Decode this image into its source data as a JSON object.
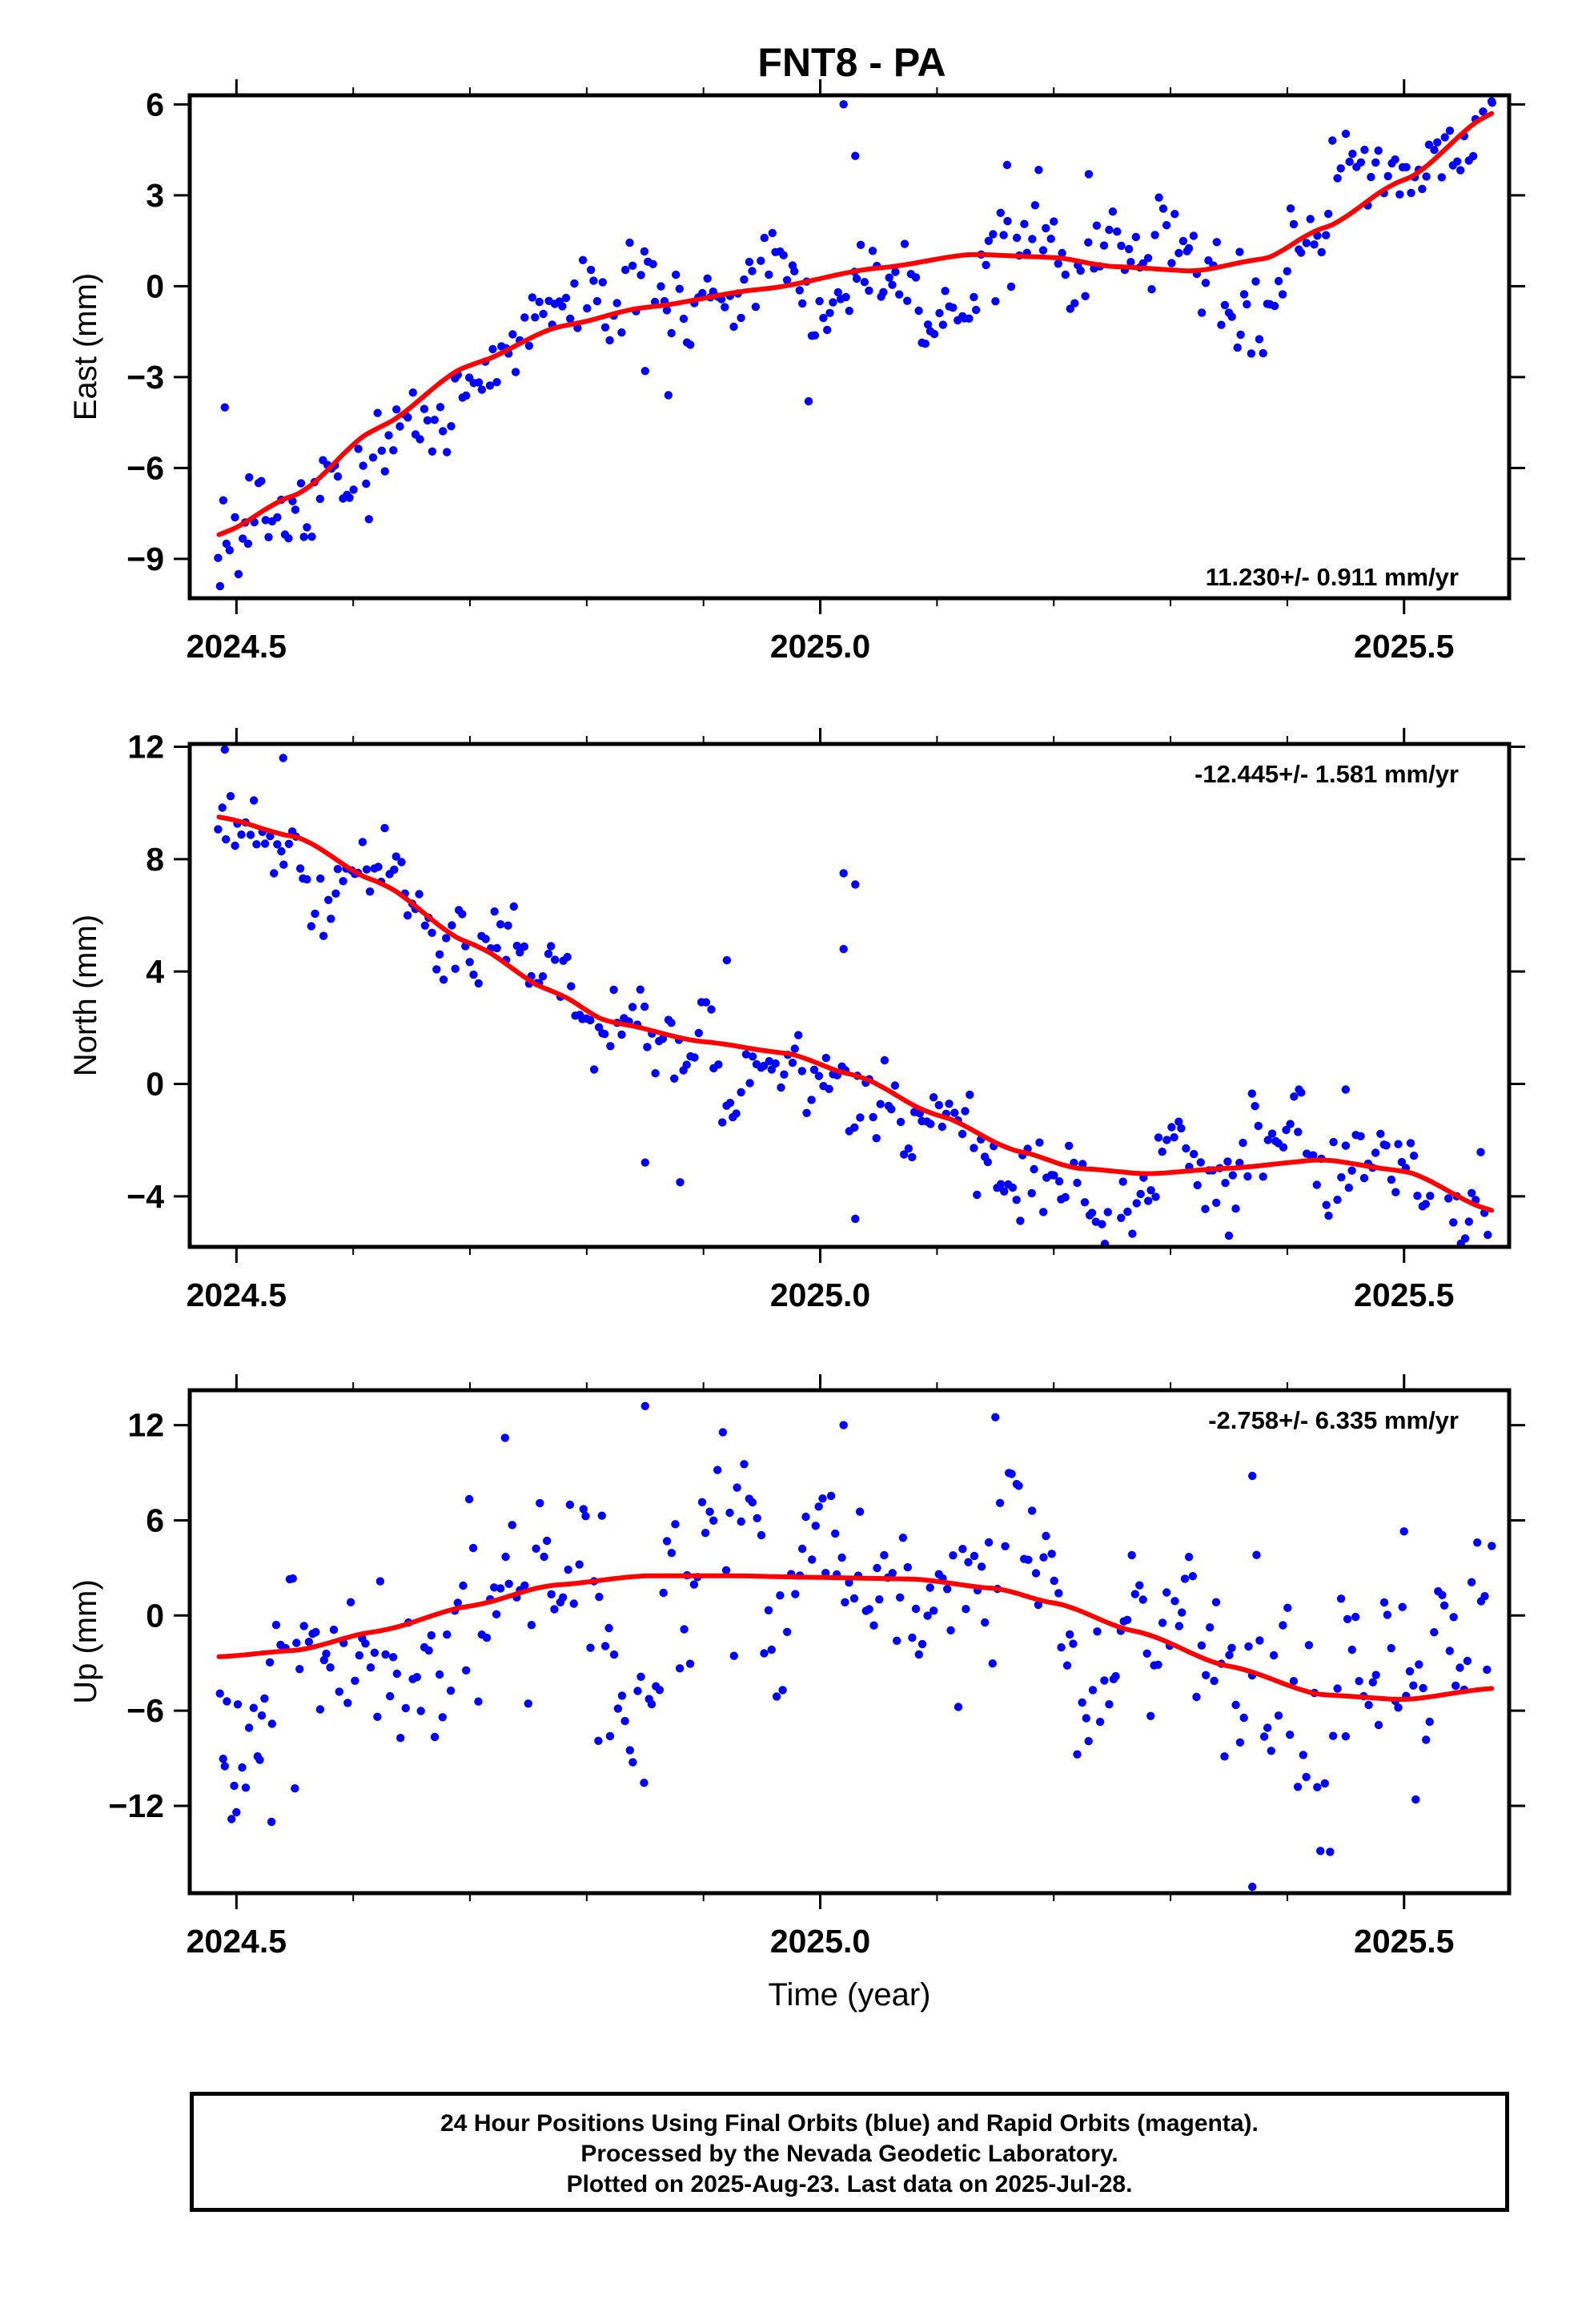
{
  "title": "FNT8 - PA",
  "caption": {
    "line1": "24 Hour Positions Using Final Orbits (blue) and Rapid Orbits (magenta).",
    "line2": "Processed by the Nevada Geodetic Laboratory.",
    "line3": "Plotted on 2025-Aug-23. Last data on 2025-Jul-28."
  },
  "colors": {
    "points": "#0000ff",
    "fit": "#ff0000",
    "frame": "#000000"
  },
  "chart_data": [
    {
      "type": "scatter",
      "ylabel": "East (mm)",
      "xlabel": "",
      "xlim": [
        2024.46,
        2025.59
      ],
      "ylim": [
        -10.3,
        6.3
      ],
      "xticks": [
        "2024.5",
        "2025.0",
        "2025.5"
      ],
      "xtick_values": [
        2024.5,
        2025.0,
        2025.5
      ],
      "yticks": [
        -9,
        -6,
        -3,
        0,
        3,
        6
      ],
      "rate": "11.230+/- 0.911 mm/yr",
      "rate_position": "bottom-right",
      "fit_knots": [
        [
          2024.485,
          -8.2
        ],
        [
          2024.55,
          -6.9
        ],
        [
          2024.62,
          -4.7
        ],
        [
          2024.7,
          -2.6
        ],
        [
          2024.78,
          -1.3
        ],
        [
          2024.85,
          -0.7
        ],
        [
          2024.95,
          -0.1
        ],
        [
          2025.05,
          0.6
        ],
        [
          2025.13,
          1.05
        ],
        [
          2025.2,
          0.95
        ],
        [
          2025.25,
          0.65
        ],
        [
          2025.32,
          0.5
        ],
        [
          2025.38,
          0.9
        ],
        [
          2025.43,
          1.9
        ],
        [
          2025.5,
          3.5
        ],
        [
          2025.575,
          5.7
        ]
      ],
      "points": {
        "x_start": 2024.485,
        "x_end": 2025.575,
        "count": 330,
        "seed": 101,
        "noise_sd": 0.95,
        "outliers": [
          [
            2024.486,
            -9.9
          ],
          [
            2024.49,
            -4.0
          ],
          [
            2024.51,
            -8.5
          ],
          [
            2025.02,
            6.0
          ],
          [
            2025.03,
            4.3
          ],
          [
            2024.87,
            -3.6
          ],
          [
            2024.99,
            -3.8
          ],
          [
            2024.85,
            -2.8
          ],
          [
            2025.09,
            -1.9
          ],
          [
            2025.23,
            3.7
          ],
          [
            2025.16,
            4.0
          ],
          [
            2025.36,
            -1.6
          ],
          [
            2025.575,
            6.1
          ]
        ]
      }
    },
    {
      "type": "scatter",
      "ylabel": "North (mm)",
      "xlabel": "",
      "xlim": [
        2024.46,
        2025.59
      ],
      "ylim": [
        -5.8,
        12.1
      ],
      "xticks": [
        "2024.5",
        "2025.0",
        "2025.5"
      ],
      "xtick_values": [
        2024.5,
        2025.0,
        2025.5
      ],
      "yticks": [
        -4,
        0,
        4,
        8,
        12
      ],
      "rate": "-12.445+/- 1.581 mm/yr",
      "rate_position": "top-right",
      "fit_knots": [
        [
          2024.485,
          9.5
        ],
        [
          2024.55,
          8.8
        ],
        [
          2024.62,
          7.2
        ],
        [
          2024.7,
          5.0
        ],
        [
          2024.77,
          3.3
        ],
        [
          2024.82,
          2.2
        ],
        [
          2024.9,
          1.5
        ],
        [
          2024.97,
          1.1
        ],
        [
          2025.03,
          0.3
        ],
        [
          2025.1,
          -1.1
        ],
        [
          2025.17,
          -2.4
        ],
        [
          2025.22,
          -3.0
        ],
        [
          2025.28,
          -3.2
        ],
        [
          2025.35,
          -3.0
        ],
        [
          2025.43,
          -2.7
        ],
        [
          2025.5,
          -3.1
        ],
        [
          2025.575,
          -4.5
        ]
      ],
      "points": {
        "x_start": 2024.485,
        "x_end": 2025.575,
        "count": 330,
        "seed": 202,
        "noise_sd": 1.0,
        "outliers": [
          [
            2024.49,
            11.9
          ],
          [
            2024.54,
            11.6
          ],
          [
            2025.02,
            7.5
          ],
          [
            2025.03,
            7.1
          ],
          [
            2025.02,
            4.8
          ],
          [
            2025.03,
            -4.8
          ],
          [
            2024.88,
            -3.5
          ],
          [
            2024.85,
            -2.8
          ],
          [
            2024.92,
            4.4
          ],
          [
            2025.35,
            -5.4
          ],
          [
            2025.41,
            -0.2
          ],
          [
            2025.45,
            -0.2
          ]
        ]
      }
    },
    {
      "type": "scatter",
      "ylabel": "Up (mm)",
      "xlabel": "Time (year)",
      "xlim": [
        2024.46,
        2025.59
      ],
      "ylim": [
        -17.5,
        14.2
      ],
      "xticks": [
        "2024.5",
        "2025.0",
        "2025.5"
      ],
      "xtick_values": [
        2024.5,
        2025.0,
        2025.5
      ],
      "yticks": [
        -12,
        -6,
        0,
        6,
        12
      ],
      "rate": "-2.758+/- 6.335 mm/yr",
      "rate_position": "top-right",
      "fit_knots": [
        [
          2024.485,
          -2.6
        ],
        [
          2024.55,
          -2.2
        ],
        [
          2024.62,
          -1.0
        ],
        [
          2024.7,
          0.6
        ],
        [
          2024.77,
          1.9
        ],
        [
          2024.85,
          2.5
        ],
        [
          2024.93,
          2.5
        ],
        [
          2025.0,
          2.4
        ],
        [
          2025.08,
          2.3
        ],
        [
          2025.15,
          1.7
        ],
        [
          2025.2,
          0.8
        ],
        [
          2025.27,
          -1.0
        ],
        [
          2025.35,
          -3.2
        ],
        [
          2025.43,
          -5.0
        ],
        [
          2025.5,
          -5.3
        ],
        [
          2025.575,
          -4.6
        ]
      ],
      "points": {
        "x_start": 2024.485,
        "x_end": 2025.575,
        "count": 330,
        "seed": 303,
        "noise_sd": 3.6,
        "outliers": [
          [
            2024.49,
            -9.5
          ],
          [
            2024.5,
            -12.4
          ],
          [
            2024.52,
            -9.1
          ],
          [
            2024.53,
            -13.0
          ],
          [
            2024.55,
            -10.9
          ],
          [
            2024.85,
            13.2
          ],
          [
            2024.73,
            11.2
          ],
          [
            2025.15,
            12.5
          ],
          [
            2025.02,
            12.0
          ],
          [
            2025.37,
            -17.1
          ],
          [
            2025.37,
            8.8
          ],
          [
            2025.5,
            5.3
          ],
          [
            2025.51,
            -11.6
          ],
          [
            2024.81,
            -7.9
          ],
          [
            2024.82,
            -7.6
          ]
        ]
      }
    }
  ]
}
